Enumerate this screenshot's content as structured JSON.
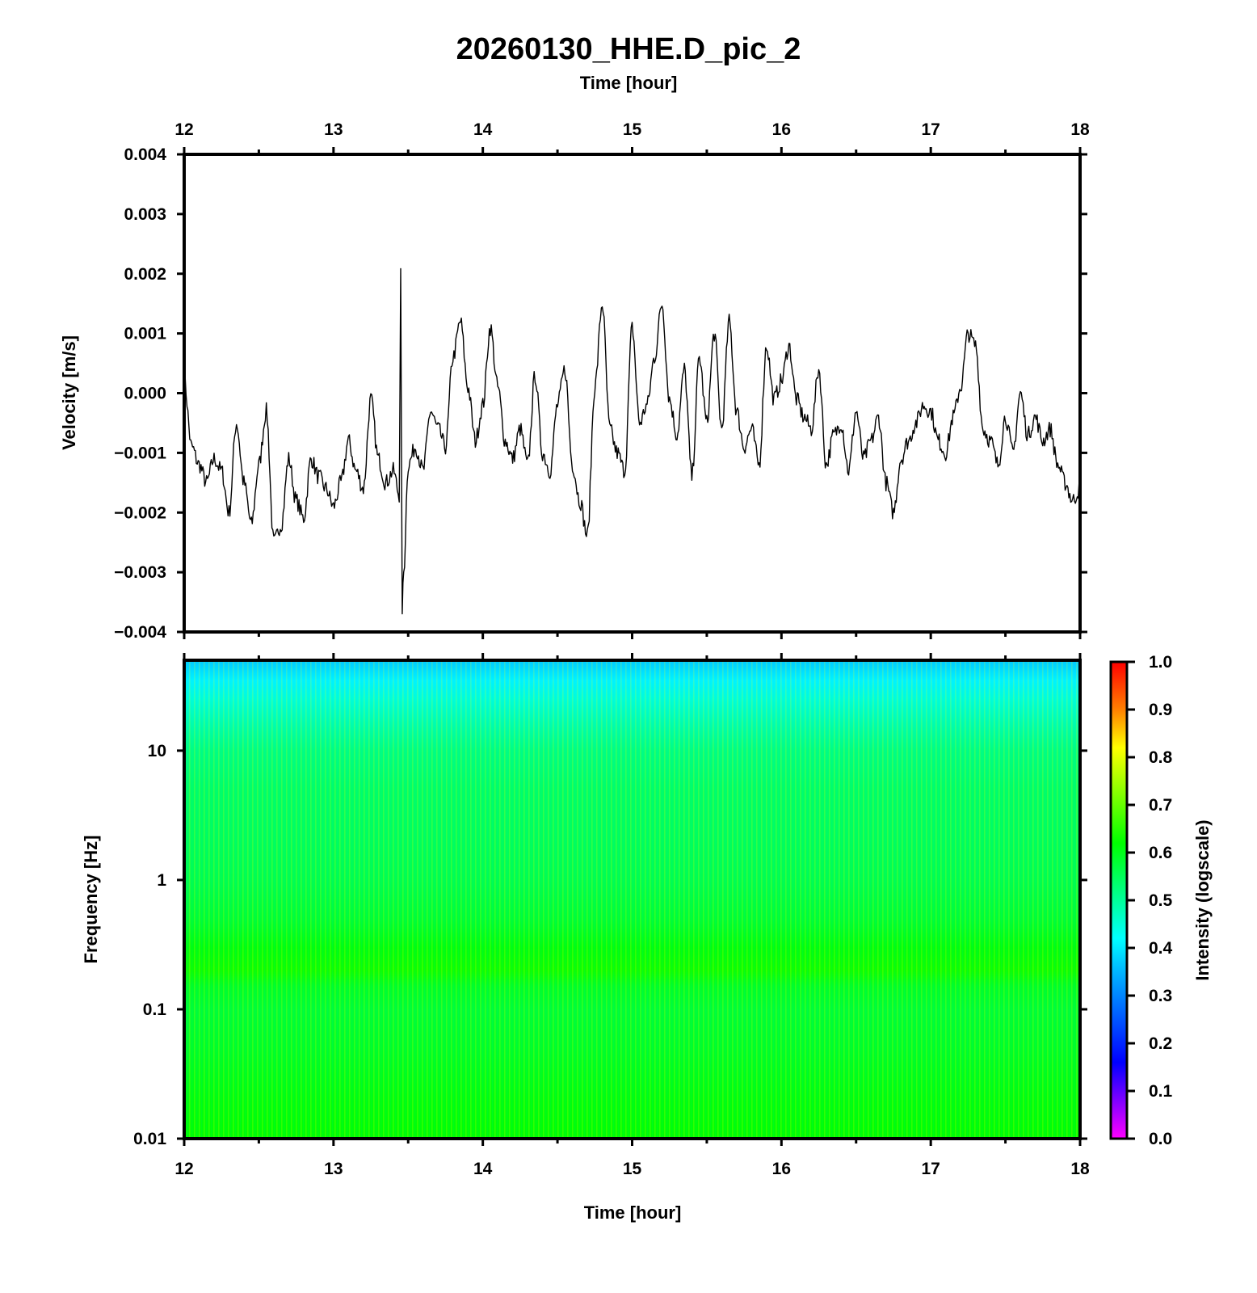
{
  "chart_data": [
    {
      "type": "line",
      "title": "20260130_HHE.D_pic_2",
      "top_xlabel": "Time [hour]",
      "ylabel": "Velocity [m/s]",
      "xlim": [
        12,
        18
      ],
      "ylim": [
        -0.004,
        0.004
      ],
      "x_ticks": [
        "12",
        "13",
        "14",
        "15",
        "16",
        "17",
        "18"
      ],
      "y_ticks": [
        "0.004",
        "0.003",
        "0.002",
        "0.001",
        "0.000",
        "−0.001",
        "−0.002",
        "−0.003",
        "−0.004"
      ],
      "line_color": "#000000",
      "series": [
        {
          "name": "HHE velocity",
          "x": [
            12.0,
            12.05,
            12.1,
            12.15,
            12.2,
            12.25,
            12.3,
            12.35,
            12.4,
            12.45,
            12.5,
            12.55,
            12.6,
            12.65,
            12.7,
            12.75,
            12.8,
            12.85,
            12.9,
            12.95,
            13.0,
            13.05,
            13.1,
            13.15,
            13.2,
            13.25,
            13.3,
            13.35,
            13.4,
            13.44,
            13.45,
            13.46,
            13.47,
            13.5,
            13.55,
            13.6,
            13.65,
            13.7,
            13.75,
            13.8,
            13.85,
            13.9,
            13.95,
            14.0,
            14.05,
            14.1,
            14.15,
            14.2,
            14.25,
            14.3,
            14.35,
            14.4,
            14.45,
            14.5,
            14.55,
            14.6,
            14.65,
            14.7,
            14.75,
            14.8,
            14.85,
            14.9,
            14.95,
            15.0,
            15.05,
            15.1,
            15.15,
            15.2,
            15.25,
            15.3,
            15.35,
            15.4,
            15.45,
            15.5,
            15.55,
            15.6,
            15.65,
            15.7,
            15.75,
            15.8,
            15.85,
            15.9,
            15.95,
            16.0,
            16.05,
            16.1,
            16.15,
            16.2,
            16.25,
            16.3,
            16.35,
            16.4,
            16.45,
            16.5,
            16.55,
            16.6,
            16.65,
            16.7,
            16.75,
            16.8,
            16.85,
            16.9,
            16.95,
            17.0,
            17.05,
            17.1,
            17.15,
            17.2,
            17.25,
            17.3,
            17.35,
            17.4,
            17.45,
            17.5,
            17.55,
            17.6,
            17.65,
            17.7,
            17.75,
            17.8,
            17.85,
            17.9,
            17.95,
            18.0
          ],
          "values": [
            0.0002,
            -0.0009,
            -0.0012,
            -0.0015,
            -0.0011,
            -0.0013,
            -0.002,
            -0.0005,
            -0.0015,
            -0.0022,
            -0.0012,
            -0.0003,
            -0.0025,
            -0.0022,
            -0.0011,
            -0.0018,
            -0.0021,
            -0.0011,
            -0.0014,
            -0.0016,
            -0.0019,
            -0.0015,
            -0.0008,
            -0.0013,
            -0.0016,
            -0.0001,
            -0.0011,
            -0.0015,
            -0.0013,
            -0.0017,
            0.002,
            -0.0036,
            -0.003,
            -0.0012,
            -0.0009,
            -0.0013,
            -0.0003,
            -0.0006,
            -0.0009,
            0.0006,
            0.0012,
            0.0001,
            -0.0008,
            -0.0002,
            0.0011,
            0.0001,
            -0.0008,
            -0.0011,
            -0.0006,
            -0.0012,
            0.0003,
            -0.001,
            -0.0013,
            -0.0002,
            0.0004,
            -0.0012,
            -0.0018,
            -0.0024,
            0.0001,
            0.0015,
            -0.0006,
            -0.001,
            -0.0013,
            0.0011,
            -0.0005,
            -0.0002,
            0.0006,
            0.0015,
            -0.0001,
            -0.0007,
            0.0004,
            -0.0014,
            0.0006,
            -0.0005,
            0.001,
            -0.0006,
            0.0012,
            -0.0003,
            -0.0009,
            -0.0006,
            -0.0012,
            0.0008,
            -0.0001,
            0.0002,
            0.0008,
            -0.0001,
            -0.0004,
            -0.0006,
            0.0004,
            -0.0012,
            -0.0007,
            -0.0005,
            -0.0013,
            -0.0003,
            -0.0011,
            -0.0008,
            -0.0004,
            -0.0015,
            -0.002,
            -0.0011,
            -0.0008,
            -0.0005,
            -0.0002,
            -0.0003,
            -0.0008,
            -0.001,
            -0.0004,
            0.0001,
            0.001,
            0.0008,
            -0.0006,
            -0.0008,
            -0.0012,
            -0.0004,
            -0.001,
            0.0,
            -0.0007,
            -0.0004,
            -0.0008,
            -0.0006,
            -0.0012,
            -0.0015,
            -0.0018,
            -0.0016
          ]
        }
      ]
    },
    {
      "type": "heatmap",
      "xlabel": "Time [hour]",
      "ylabel": "Frequency [Hz]",
      "xlim": [
        12,
        18
      ],
      "ylim": [
        0.01,
        50
      ],
      "yscale": "log",
      "x_ticks": [
        "12",
        "13",
        "14",
        "15",
        "16",
        "17",
        "18"
      ],
      "y_ticks": [
        "10",
        "1",
        "0.1",
        "0.01"
      ],
      "y_tick_values": [
        10,
        1,
        0.1,
        0.01
      ],
      "intensity_profile": {
        "frequency_hz": [
          50,
          35,
          25,
          15,
          10,
          5,
          2,
          1,
          0.5,
          0.3,
          0.2,
          0.15,
          0.1,
          0.05,
          0.02,
          0.01
        ],
        "intensity": [
          0.37,
          0.41,
          0.45,
          0.49,
          0.52,
          0.54,
          0.55,
          0.56,
          0.58,
          0.61,
          0.63,
          0.59,
          0.58,
          0.59,
          0.61,
          0.62
        ]
      },
      "colorbar": {
        "label": "Intensity (logscale)",
        "range": [
          0.0,
          1.0
        ],
        "ticks": [
          "1.0",
          "0.9",
          "0.8",
          "0.7",
          "0.6",
          "0.5",
          "0.4",
          "0.3",
          "0.2",
          "0.1",
          "0.0"
        ],
        "colors": [
          "#ff00ff",
          "#0000ff",
          "#00bfff",
          "#00ffff",
          "#00ff80",
          "#00ff00",
          "#80ff00",
          "#ffff00",
          "#ff8000",
          "#ff0000"
        ]
      }
    }
  ]
}
